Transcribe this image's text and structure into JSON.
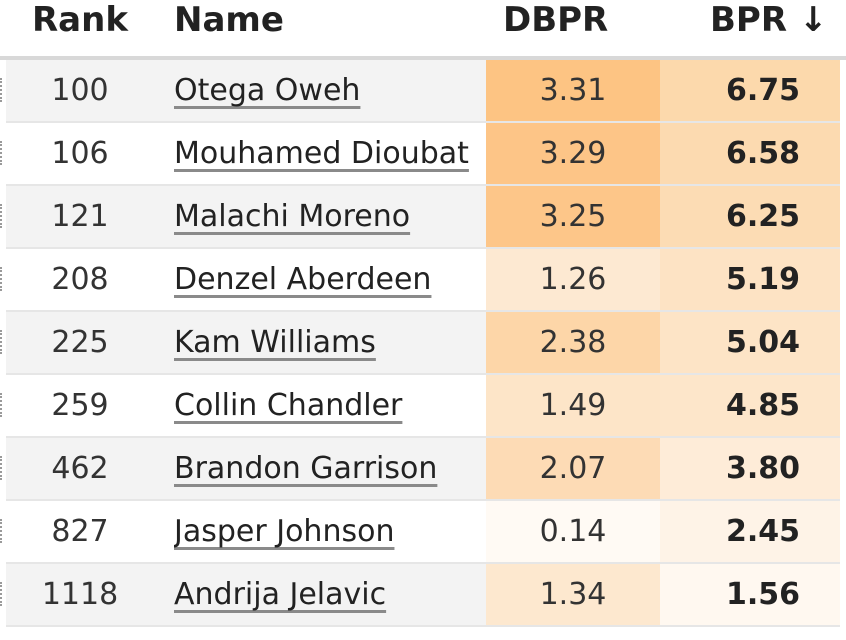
{
  "columns": {
    "rank": "Rank",
    "name": "Name",
    "dbpr": "DBPR",
    "bpr": "BPR ↓"
  },
  "rows": [
    {
      "rank": "100",
      "name": "Otega Oweh",
      "dbpr": "3.31",
      "bpr": "6.75",
      "dbpr_color": "#fdc483",
      "bpr_color": "#fcd9ac"
    },
    {
      "rank": "106",
      "name": "Mouhamed Dioubat",
      "dbpr": "3.29",
      "bpr": "6.58",
      "dbpr_color": "#fdc587",
      "bpr_color": "#fcdab0"
    },
    {
      "rank": "121",
      "name": "Malachi Moreno",
      "dbpr": "3.25",
      "bpr": "6.25",
      "dbpr_color": "#fdc689",
      "bpr_color": "#fcdcb4"
    },
    {
      "rank": "208",
      "name": "Denzel Aberdeen",
      "dbpr": "1.26",
      "bpr": "5.19",
      "dbpr_color": "#fde9d2",
      "bpr_color": "#fde3c4"
    },
    {
      "rank": "225",
      "name": "Kam Williams",
      "dbpr": "2.38",
      "bpr": "5.04",
      "dbpr_color": "#fdd6a8",
      "bpr_color": "#fde4c6"
    },
    {
      "rank": "259",
      "name": "Collin Chandler",
      "dbpr": "1.49",
      "bpr": "4.85",
      "dbpr_color": "#fde5c8",
      "bpr_color": "#fde6ca"
    },
    {
      "rank": "462",
      "name": "Brandon Garrison",
      "dbpr": "2.07",
      "bpr": "3.80",
      "dbpr_color": "#fddbb5",
      "bpr_color": "#feecd8"
    },
    {
      "rank": "827",
      "name": "Jasper Johnson",
      "dbpr": "0.14",
      "bpr": "2.45",
      "dbpr_color": "#fffaf4",
      "bpr_color": "#fef3e7"
    },
    {
      "rank": "1118",
      "name": "Andrija Jelavic",
      "dbpr": "1.34",
      "bpr": "1.56",
      "dbpr_color": "#fde8cf",
      "bpr_color": "#fff8f0"
    }
  ]
}
